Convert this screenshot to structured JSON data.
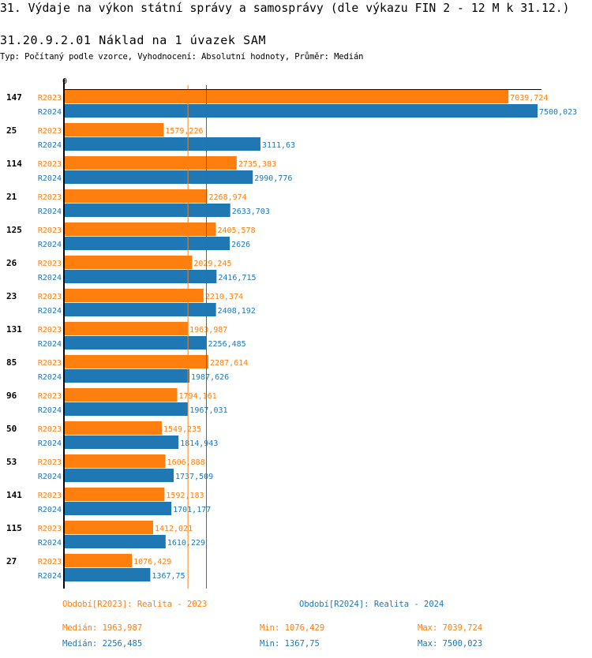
{
  "header": {
    "title": "31. Výdaje na výkon státní správy a samosprávy (dle výkazu FIN 2 - 12 M k 31.12.)",
    "subtitle": "31.20.9.2.01 Náklad na 1 úvazek SAM",
    "info": "Typ: Počítaný podle vzorce, Vyhodnocení: Absolutní hodnoty, Průměr: Medián"
  },
  "colors": {
    "R2023": "#ff7f0e",
    "R2024": "#1f77b4"
  },
  "chart_data": {
    "type": "bar",
    "orientation": "horizontal",
    "x_tick_label": "0",
    "xlim": [
      0,
      7500.023
    ],
    "categories": [
      "147",
      "25",
      "114",
      "21",
      "125",
      "26",
      "23",
      "131",
      "85",
      "96",
      "50",
      "53",
      "141",
      "115",
      "27"
    ],
    "series": [
      {
        "name": "R2023",
        "values": [
          7039.724,
          1579.226,
          2735.383,
          2268.974,
          2405.578,
          2029.245,
          2210.374,
          1963.987,
          2287.614,
          1794.161,
          1549.235,
          1606.888,
          1592.183,
          1412.021,
          1076.429
        ],
        "labels": [
          "7039,724",
          "1579,226",
          "2735,383",
          "2268,974",
          "2405,578",
          "2029,245",
          "2210,374",
          "1963,987",
          "2287,614",
          "1794,161",
          "1549,235",
          "1606,888",
          "1592,183",
          "1412,021",
          "1076,429"
        ]
      },
      {
        "name": "R2024",
        "values": [
          7500.023,
          3111.63,
          2990.776,
          2633.703,
          2626,
          2416.715,
          2408.192,
          2256.485,
          1987.626,
          1967.031,
          1814.943,
          1737.509,
          1701.177,
          1610.229,
          1367.75
        ],
        "labels": [
          "7500,023",
          "3111,63",
          "2990,776",
          "2633,703",
          "2626",
          "2416,715",
          "2408,192",
          "2256,485",
          "1987,626",
          "1967,031",
          "1814,943",
          "1737,509",
          "1701,177",
          "1610,229",
          "1367,75"
        ]
      }
    ],
    "median_lines": {
      "R2023": 1963.987,
      "R2024": 2256.485
    }
  },
  "legend": {
    "r2023": "Období[R2023]: Realita - 2023",
    "r2024": "Období[R2024]: Realita - 2024"
  },
  "stats": {
    "r2023": {
      "median": "Medián: 1963,987",
      "min": "Min: 1076,429",
      "max": "Max: 7039,724"
    },
    "r2024": {
      "median": "Medián: 2256,485",
      "min": "Min: 1367,75",
      "max": "Max: 7500,023"
    }
  }
}
